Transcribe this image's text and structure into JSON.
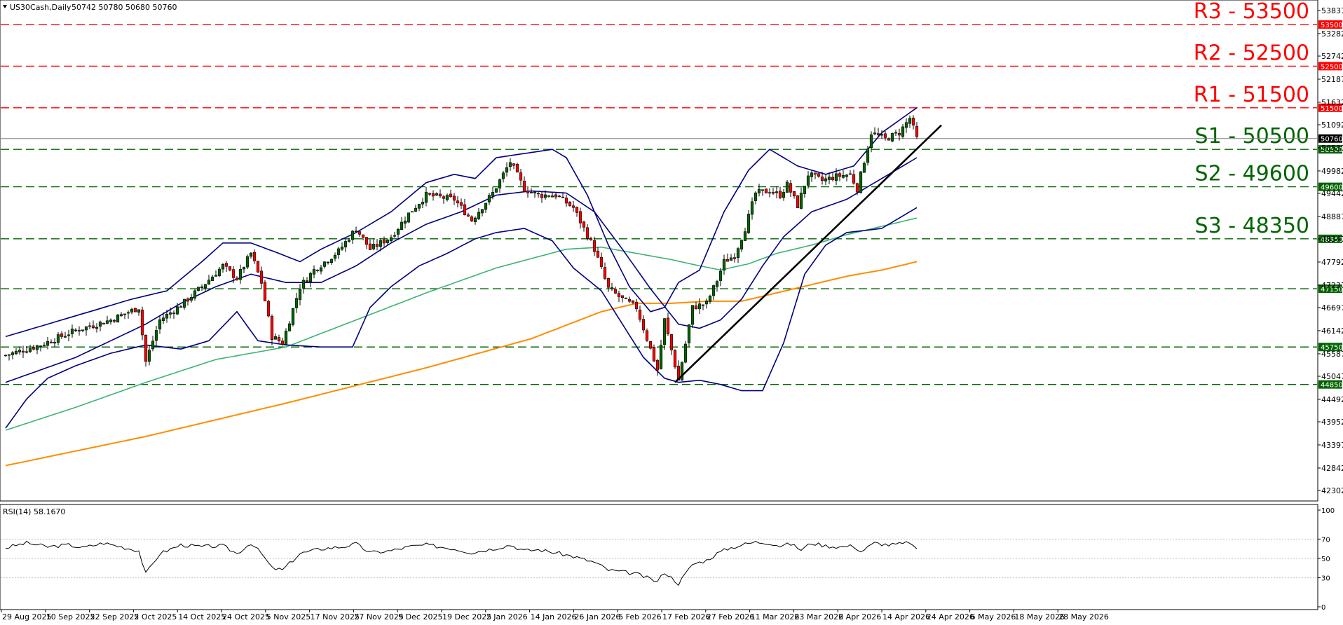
{
  "header": {
    "symbol_label": "US30Cash,Daily",
    "ohlc_label": "50742 50780 50680 50760"
  },
  "colors": {
    "resistance": "#ff0000",
    "support": "#006400",
    "bull_candle": "#006400",
    "bear_candle": "#ff0000",
    "bollinger": "#000080",
    "ma_green": "#3cb371",
    "ma_orange": "#ff8c00",
    "trendline": "#000000",
    "current_price_line": "#808080",
    "rsi_line": "#000000"
  },
  "chart_data": {
    "type": "candlestick",
    "price_axis": {
      "min": 42302,
      "max": 53837,
      "ticks": [
        53837,
        53282,
        52742,
        52187,
        51632,
        51092,
        50537,
        49982,
        49442,
        48887,
        48347,
        47792,
        47237,
        46697,
        46142,
        45587,
        45047,
        44492,
        43952,
        43397,
        42842,
        42302
      ]
    },
    "x_axis": {
      "labels": [
        "29 Aug 2025",
        "10 Sep 2025",
        "22 Sep 2025",
        "2 Oct 2025",
        "14 Oct 2025",
        "24 Oct 2025",
        "5 Nov 2025",
        "17 Nov 2025",
        "27 Nov 2025",
        "9 Dec 2025",
        "19 Dec 2025",
        "2 Jan 2026",
        "14 Jan 2026",
        "26 Jan 2026",
        "5 Feb 2026",
        "17 Feb 2026",
        "27 Feb 2026",
        "11 Mar 2026",
        "23 Mar 2026",
        "2 Apr 2026",
        "14 Apr 2026",
        "24 Apr 2026",
        "6 May 2026",
        "18 May 2026",
        "28 May 2026"
      ]
    },
    "levels": [
      {
        "name": "R3 - 53500",
        "value": 53500,
        "tag": "53500",
        "kind": "resistance"
      },
      {
        "name": "R2 - 52500",
        "value": 52500,
        "tag": "52500",
        "kind": "resistance"
      },
      {
        "name": "R1 - 51500",
        "value": 51500,
        "tag": "51500",
        "kind": "resistance"
      },
      {
        "name": "S1 - 50500",
        "value": 50500,
        "tag": "50500",
        "kind": "support"
      },
      {
        "name": "S2 - 49600",
        "value": 49600,
        "tag": "49600",
        "kind": "support"
      },
      {
        "name": "S3 - 48350",
        "value": 48350,
        "tag": "48350",
        "kind": "support"
      },
      {
        "name": "",
        "value": 47150,
        "tag": "47150",
        "kind": "support"
      },
      {
        "name": "",
        "value": 45750,
        "tag": "45750",
        "kind": "support"
      },
      {
        "name": "",
        "value": 44850,
        "tag": "44850",
        "kind": "support"
      }
    ],
    "current_price": {
      "value": 50760,
      "tag": "50760"
    },
    "path_keypoints": [
      [
        0,
        45550
      ],
      [
        10,
        45800
      ],
      [
        20,
        46150
      ],
      [
        30,
        46400
      ],
      [
        38,
        46700
      ],
      [
        40,
        45400
      ],
      [
        44,
        46400
      ],
      [
        50,
        46750
      ],
      [
        56,
        47200
      ],
      [
        62,
        47700
      ],
      [
        66,
        47400
      ],
      [
        70,
        48000
      ],
      [
        73,
        47300
      ],
      [
        76,
        46000
      ],
      [
        79,
        45850
      ],
      [
        84,
        47200
      ],
      [
        88,
        47600
      ],
      [
        95,
        48050
      ],
      [
        100,
        48600
      ],
      [
        104,
        48100
      ],
      [
        110,
        48400
      ],
      [
        115,
        48950
      ],
      [
        120,
        49400
      ],
      [
        128,
        49300
      ],
      [
        133,
        48800
      ],
      [
        139,
        49450
      ],
      [
        144,
        50200
      ],
      [
        148,
        49550
      ],
      [
        152,
        49400
      ],
      [
        157,
        49400
      ],
      [
        162,
        49100
      ],
      [
        168,
        48100
      ],
      [
        172,
        47150
      ],
      [
        176,
        46900
      ],
      [
        180,
        46700
      ],
      [
        186,
        45200
      ],
      [
        188,
        46400
      ],
      [
        192,
        44950
      ],
      [
        196,
        46700
      ],
      [
        200,
        46800
      ],
      [
        203,
        47350
      ],
      [
        205,
        47800
      ],
      [
        208,
        47950
      ],
      [
        211,
        48600
      ],
      [
        214,
        49450
      ],
      [
        218,
        49500
      ],
      [
        221,
        49400
      ],
      [
        223,
        49650
      ],
      [
        226,
        49150
      ],
      [
        229,
        49900
      ],
      [
        233,
        49750
      ],
      [
        237,
        49850
      ],
      [
        241,
        49900
      ],
      [
        243,
        49550
      ],
      [
        247,
        50900
      ],
      [
        251,
        50750
      ],
      [
        255,
        50900
      ],
      [
        258,
        51250
      ],
      [
        260,
        50760
      ]
    ],
    "bollinger_upper": [
      [
        0,
        46000
      ],
      [
        20,
        46500
      ],
      [
        36,
        46900
      ],
      [
        46,
        47100
      ],
      [
        56,
        47800
      ],
      [
        62,
        48250
      ],
      [
        70,
        48250
      ],
      [
        78,
        48000
      ],
      [
        84,
        47800
      ],
      [
        90,
        48100
      ],
      [
        100,
        48500
      ],
      [
        110,
        49000
      ],
      [
        120,
        49700
      ],
      [
        128,
        49900
      ],
      [
        134,
        49800
      ],
      [
        140,
        50300
      ],
      [
        148,
        50400
      ],
      [
        156,
        50500
      ],
      [
        160,
        50300
      ],
      [
        166,
        49400
      ],
      [
        172,
        48200
      ],
      [
        178,
        47200
      ],
      [
        184,
        46600
      ],
      [
        188,
        46700
      ],
      [
        192,
        47300
      ],
      [
        198,
        47600
      ],
      [
        205,
        49000
      ],
      [
        212,
        50000
      ],
      [
        218,
        50500
      ],
      [
        226,
        50100
      ],
      [
        234,
        49900
      ],
      [
        242,
        50100
      ],
      [
        250,
        50900
      ],
      [
        260,
        51500
      ]
    ],
    "bollinger_lower": [
      [
        0,
        43800
      ],
      [
        6,
        44500
      ],
      [
        12,
        45000
      ],
      [
        20,
        45300
      ],
      [
        30,
        45600
      ],
      [
        40,
        45800
      ],
      [
        50,
        45700
      ],
      [
        58,
        45900
      ],
      [
        66,
        46600
      ],
      [
        72,
        45900
      ],
      [
        80,
        45800
      ],
      [
        90,
        45750
      ],
      [
        99,
        45750
      ],
      [
        104,
        46700
      ],
      [
        110,
        47200
      ],
      [
        118,
        47700
      ],
      [
        126,
        48000
      ],
      [
        134,
        48350
      ],
      [
        140,
        48500
      ],
      [
        148,
        48600
      ],
      [
        156,
        48300
      ],
      [
        162,
        47650
      ],
      [
        170,
        47100
      ],
      [
        176,
        46300
      ],
      [
        182,
        45500
      ],
      [
        188,
        45000
      ],
      [
        192,
        44900
      ],
      [
        198,
        44950
      ],
      [
        204,
        44850
      ],
      [
        210,
        44700
      ],
      [
        216,
        44700
      ],
      [
        222,
        45850
      ],
      [
        228,
        47500
      ],
      [
        234,
        48200
      ],
      [
        240,
        48500
      ],
      [
        250,
        48600
      ],
      [
        260,
        49100
      ]
    ],
    "bollinger_middle": [
      [
        0,
        44900
      ],
      [
        20,
        45500
      ],
      [
        40,
        46300
      ],
      [
        50,
        46800
      ],
      [
        60,
        47200
      ],
      [
        70,
        47500
      ],
      [
        80,
        47300
      ],
      [
        90,
        47300
      ],
      [
        100,
        47700
      ],
      [
        110,
        48250
      ],
      [
        120,
        48700
      ],
      [
        130,
        49000
      ],
      [
        140,
        49400
      ],
      [
        150,
        49500
      ],
      [
        160,
        49450
      ],
      [
        168,
        49000
      ],
      [
        176,
        48100
      ],
      [
        184,
        47150
      ],
      [
        192,
        46300
      ],
      [
        198,
        46200
      ],
      [
        204,
        46400
      ],
      [
        210,
        46900
      ],
      [
        216,
        47700
      ],
      [
        222,
        48400
      ],
      [
        230,
        49000
      ],
      [
        240,
        49300
      ],
      [
        250,
        49800
      ],
      [
        260,
        50300
      ]
    ],
    "ma_green": [
      [
        0,
        43750
      ],
      [
        20,
        44300
      ],
      [
        40,
        44900
      ],
      [
        60,
        45450
      ],
      [
        80,
        45750
      ],
      [
        100,
        46400
      ],
      [
        120,
        47050
      ],
      [
        140,
        47650
      ],
      [
        160,
        48100
      ],
      [
        170,
        48150
      ],
      [
        180,
        48000
      ],
      [
        190,
        47850
      ],
      [
        198,
        47700
      ],
      [
        204,
        47600
      ],
      [
        212,
        47750
      ],
      [
        220,
        48000
      ],
      [
        230,
        48200
      ],
      [
        240,
        48450
      ],
      [
        250,
        48650
      ],
      [
        260,
        48850
      ]
    ],
    "ma_orange": [
      [
        0,
        42900
      ],
      [
        40,
        43600
      ],
      [
        80,
        44400
      ],
      [
        120,
        45250
      ],
      [
        150,
        45950
      ],
      [
        170,
        46600
      ],
      [
        180,
        46800
      ],
      [
        190,
        46800
      ],
      [
        200,
        46850
      ],
      [
        210,
        46850
      ],
      [
        220,
        47050
      ],
      [
        230,
        47250
      ],
      [
        240,
        47450
      ],
      [
        250,
        47600
      ],
      [
        260,
        47800
      ]
    ],
    "trendline": {
      "start": [
        191,
        44900
      ],
      "end": [
        267,
        51080
      ]
    },
    "rsi": {
      "label": "RSI(14) 58.1670",
      "value": 58.167,
      "min": 0,
      "max": 100,
      "ticks": [
        100,
        70,
        50,
        30,
        0
      ],
      "levels": [
        70,
        50,
        30
      ],
      "keypoints": [
        [
          0,
          61
        ],
        [
          6,
          66
        ],
        [
          12,
          62
        ],
        [
          18,
          64
        ],
        [
          22,
          61
        ],
        [
          28,
          66
        ],
        [
          33,
          62
        ],
        [
          38,
          58
        ],
        [
          40,
          34
        ],
        [
          44,
          55
        ],
        [
          50,
          64
        ],
        [
          56,
          62
        ],
        [
          62,
          63
        ],
        [
          66,
          55
        ],
        [
          70,
          66
        ],
        [
          73,
          55
        ],
        [
          76,
          40
        ],
        [
          79,
          38
        ],
        [
          84,
          55
        ],
        [
          90,
          60
        ],
        [
          96,
          62
        ],
        [
          100,
          65
        ],
        [
          104,
          56
        ],
        [
          110,
          58
        ],
        [
          115,
          62
        ],
        [
          120,
          64
        ],
        [
          128,
          60
        ],
        [
          133,
          56
        ],
        [
          139,
          60
        ],
        [
          144,
          64
        ],
        [
          148,
          58
        ],
        [
          152,
          59
        ],
        [
          157,
          56
        ],
        [
          162,
          52
        ],
        [
          168,
          46
        ],
        [
          172,
          38
        ],
        [
          176,
          36
        ],
        [
          180,
          34
        ],
        [
          186,
          26
        ],
        [
          188,
          36
        ],
        [
          192,
          24
        ],
        [
          196,
          44
        ],
        [
          200,
          48
        ],
        [
          203,
          55
        ],
        [
          206,
          60
        ],
        [
          210,
          64
        ],
        [
          214,
          67
        ],
        [
          218,
          66
        ],
        [
          221,
          63
        ],
        [
          224,
          65
        ],
        [
          227,
          59
        ],
        [
          230,
          66
        ],
        [
          234,
          63
        ],
        [
          238,
          62
        ],
        [
          242,
          63
        ],
        [
          244,
          57
        ],
        [
          248,
          66
        ],
        [
          252,
          64
        ],
        [
          256,
          65
        ],
        [
          258,
          67
        ],
        [
          260,
          58
        ]
      ]
    }
  }
}
